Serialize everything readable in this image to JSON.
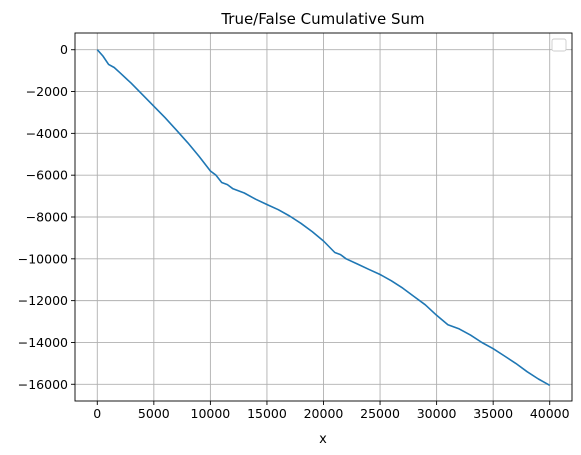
{
  "chart_data": {
    "type": "line",
    "title": "True/False Cumulative Sum",
    "xlabel": "x",
    "ylabel": "",
    "xlim": [
      -1970,
      41970
    ],
    "ylim": [
      -16800,
      800
    ],
    "xticks": [
      0,
      5000,
      10000,
      15000,
      20000,
      25000,
      30000,
      35000,
      40000
    ],
    "xtick_labels": [
      "0",
      "5000",
      "10000",
      "15000",
      "20000",
      "25000",
      "30000",
      "35000",
      "40000"
    ],
    "yticks": [
      0,
      -2000,
      -4000,
      -6000,
      -8000,
      -10000,
      -12000,
      -14000,
      -16000
    ],
    "ytick_labels": [
      "0",
      "−2000",
      "−4000",
      "−6000",
      "−8000",
      "−10000",
      "−12000",
      "−14000",
      "−16000"
    ],
    "grid": true,
    "legend": "top-right (empty)",
    "colors": {
      "line": "#1f77b4",
      "grid": "#b0b0b0",
      "axes": "#000000"
    },
    "series": [
      {
        "x": [
          0,
          500,
          1000,
          1500,
          2000,
          3000,
          4000,
          5000,
          6000,
          7000,
          8000,
          9000,
          10000,
          10500,
          11000,
          11500,
          12000,
          13000,
          14000,
          15000,
          16000,
          17000,
          18000,
          19000,
          20000,
          21000,
          21500,
          22000,
          23000,
          24000,
          25000,
          26000,
          27000,
          28000,
          29000,
          30000,
          31000,
          32000,
          33000,
          34000,
          35000,
          36000,
          37000,
          38000,
          39000,
          40000
        ],
        "y": [
          0,
          -300,
          -700,
          -850,
          -1100,
          -1600,
          -2150,
          -2700,
          -3250,
          -3850,
          -4450,
          -5100,
          -5800,
          -6000,
          -6350,
          -6450,
          -6650,
          -6850,
          -7150,
          -7400,
          -7650,
          -7950,
          -8300,
          -8700,
          -9150,
          -9700,
          -9800,
          -10000,
          -10250,
          -10500,
          -10750,
          -11050,
          -11400,
          -11800,
          -12200,
          -12700,
          -13150,
          -13350,
          -13650,
          -14000,
          -14300,
          -14650,
          -15000,
          -15400,
          -15750,
          -16050
        ]
      }
    ]
  }
}
